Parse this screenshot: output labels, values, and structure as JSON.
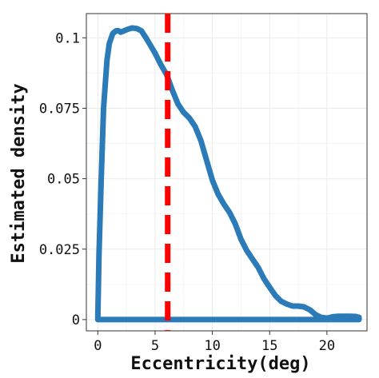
{
  "chart_data": {
    "type": "line",
    "title": "",
    "xlabel": "Eccentricity(deg)",
    "ylabel": "Estimated density",
    "xlim": [
      -1.0,
      23.5
    ],
    "ylim": [
      -0.004,
      0.1086
    ],
    "x_ticks": [
      0,
      5,
      10,
      15,
      20
    ],
    "x_tick_labels": [
      "0",
      "5",
      "10",
      "15",
      "20"
    ],
    "y_ticks": [
      0,
      0.025,
      0.05,
      0.075,
      0.1
    ],
    "y_tick_labels": [
      "0",
      "0.025",
      "0.05",
      "0.075",
      "0.1"
    ],
    "grid": true,
    "legend": "none",
    "colors": {
      "density": "#2b7bb9",
      "reference": "#ff0000",
      "grid": "#ebebeb",
      "frame": "#333333"
    },
    "series": [
      {
        "style": "closed-density-outline",
        "x": [
          0.0,
          0.1,
          0.3,
          0.5,
          0.8,
          1.0,
          1.3,
          1.6,
          1.8,
          2.0,
          2.3,
          2.6,
          3.0,
          3.4,
          3.8,
          4.2,
          4.5,
          5.0,
          5.5,
          6.0,
          6.5,
          7.0,
          7.5,
          8.0,
          8.5,
          9.0,
          9.5,
          10.0,
          10.5,
          11.0,
          11.5,
          12.0,
          12.5,
          13.0,
          13.5,
          14.0,
          14.5,
          15.0,
          15.5,
          16.0,
          16.5,
          17.0,
          17.5,
          18.0,
          18.5,
          19.0,
          19.5,
          20.0,
          20.5,
          21.0,
          21.5,
          22.0,
          22.5,
          22.8,
          22.8,
          0.0
        ],
        "y": [
          0.0,
          0.023,
          0.05,
          0.075,
          0.092,
          0.098,
          0.1015,
          0.1025,
          0.1025,
          0.102,
          0.1025,
          0.103,
          0.1035,
          0.1033,
          0.1025,
          0.1,
          0.098,
          0.0945,
          0.0905,
          0.087,
          0.0815,
          0.0765,
          0.0735,
          0.0715,
          0.0685,
          0.0635,
          0.0565,
          0.0495,
          0.0445,
          0.041,
          0.038,
          0.034,
          0.0285,
          0.0245,
          0.0215,
          0.0185,
          0.0145,
          0.0115,
          0.0085,
          0.0065,
          0.0055,
          0.0048,
          0.0048,
          0.0045,
          0.0035,
          0.0018,
          0.0008,
          0.0005,
          0.001,
          0.0012,
          0.0012,
          0.0012,
          0.0011,
          0.0008,
          0.0,
          0.0
        ]
      }
    ],
    "reference_line": {
      "orientation": "vertical",
      "x": 6.1,
      "style": "dashed"
    }
  }
}
